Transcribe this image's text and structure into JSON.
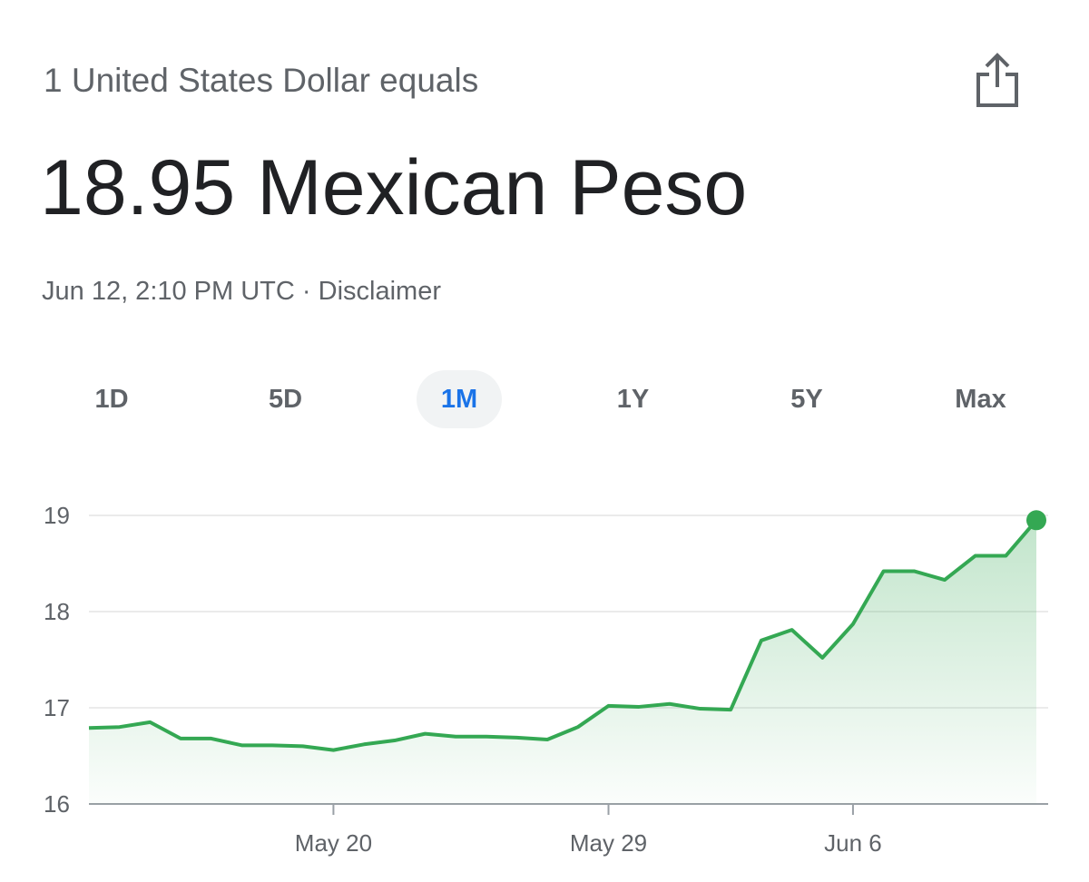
{
  "header": {
    "subtitle": "1 United States Dollar equals",
    "value": "18.95 Mexican Peso",
    "timestamp": "Jun 12, 2:10 PM UTC",
    "separator": "·",
    "disclaimer": "Disclaimer"
  },
  "tabs": [
    "1D",
    "5D",
    "1M",
    "1Y",
    "5Y",
    "Max"
  ],
  "selected_tab": 2,
  "chart_data": {
    "type": "line",
    "x": [
      "May 12",
      "May 13",
      "May 14",
      "May 15",
      "May 16",
      "May 17",
      "May 18",
      "May 19",
      "May 20",
      "May 21",
      "May 22",
      "May 23",
      "May 24",
      "May 25",
      "May 26",
      "May 27",
      "May 28",
      "May 29",
      "May 30",
      "May 31",
      "Jun 1",
      "Jun 2",
      "Jun 3",
      "Jun 4",
      "Jun 5",
      "Jun 6",
      "Jun 7",
      "Jun 8",
      "Jun 9",
      "Jun 10",
      "Jun 11",
      "Jun 12"
    ],
    "series": [
      {
        "color": "#34a853",
        "values": [
          16.79,
          16.8,
          16.85,
          16.68,
          16.68,
          16.61,
          16.61,
          16.6,
          16.56,
          16.62,
          16.66,
          16.73,
          16.7,
          16.7,
          16.69,
          16.67,
          16.8,
          17.02,
          17.01,
          17.04,
          16.99,
          16.98,
          17.7,
          17.81,
          17.52,
          17.87,
          18.42,
          18.42,
          18.33,
          18.58,
          18.58,
          18.95
        ]
      }
    ],
    "xticks": [
      "May 20",
      "May 29",
      "Jun 6"
    ],
    "ylim": [
      16,
      19
    ],
    "yticks": [
      16,
      17,
      18,
      19
    ],
    "grid": true
  }
}
